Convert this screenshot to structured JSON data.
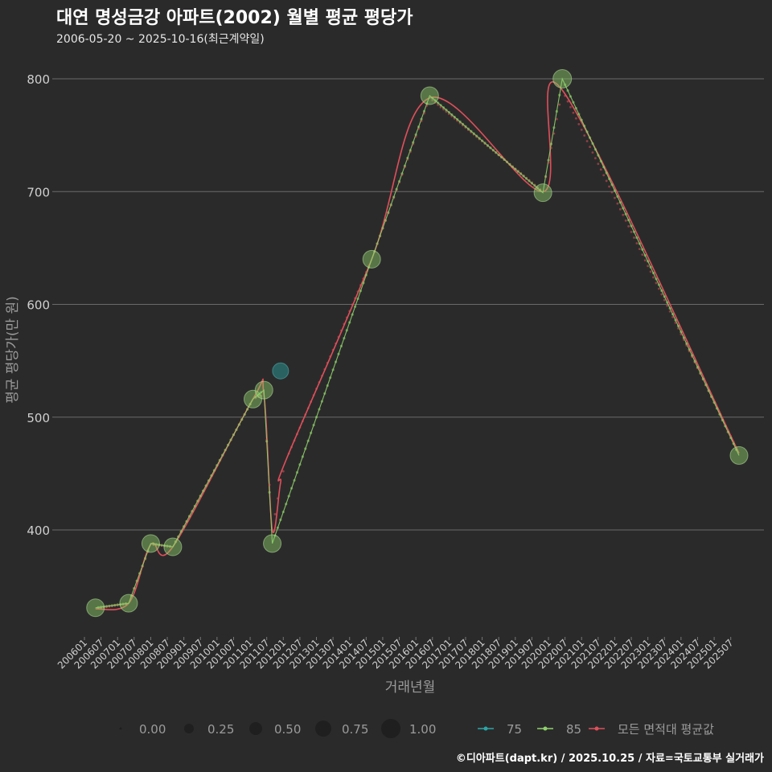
{
  "header": {
    "title": "대연 명성금강 아파트(2002) 월별 평균 평당가",
    "subtitle": "2006-05-20 ~ 2025-10-16(최근계약일)"
  },
  "footer": {
    "credit": "©디아파트(dapt.kr) / 2025.10.25 / 자료=국토교통부 실거래가"
  },
  "chart_data": {
    "type": "line",
    "title": "대연 명성금강 아파트(2002) 월별 평균 평당가",
    "xlabel": "거래년월",
    "ylabel": "평균 평당가(만 원)",
    "ylim": [
      305,
      815
    ],
    "yticks": [
      400,
      500,
      600,
      700,
      800
    ],
    "xlim": [
      0,
      240
    ],
    "x_tick_labels": [
      "200601",
      "200607",
      "200701",
      "200707",
      "200801",
      "200807",
      "200901",
      "200907",
      "201001",
      "201007",
      "201101",
      "201107",
      "201201",
      "201207",
      "201301",
      "201307",
      "201401",
      "201407",
      "201501",
      "201507",
      "201601",
      "201607",
      "201701",
      "201707",
      "201801",
      "201807",
      "201901",
      "201907",
      "202001",
      "202007",
      "202101",
      "202107",
      "202201",
      "202207",
      "202301",
      "202307",
      "202401",
      "202407",
      "202501",
      "202507"
    ],
    "x_tick_index": [
      0,
      6,
      12,
      18,
      24,
      30,
      36,
      42,
      48,
      54,
      60,
      66,
      72,
      78,
      84,
      90,
      96,
      102,
      108,
      114,
      120,
      126,
      132,
      138,
      144,
      150,
      156,
      162,
      168,
      174,
      180,
      186,
      192,
      198,
      204,
      210,
      216,
      222,
      228,
      234
    ],
    "x_unit": "months since 200601",
    "series": [
      {
        "name": "75",
        "color": "#2aa6a6",
        "points": [
          {
            "x": 71,
            "month": "201112",
            "y": 541,
            "size": 0.6
          }
        ]
      },
      {
        "name": "85",
        "color": "#8fd16a",
        "points": [
          {
            "x": 4,
            "month": "200605",
            "y": 331,
            "size": 0.8
          },
          {
            "x": 16,
            "month": "200705",
            "y": 335,
            "size": 0.8
          },
          {
            "x": 24,
            "month": "200801",
            "y": 388,
            "size": 0.8
          },
          {
            "x": 32,
            "month": "200809",
            "y": 385,
            "size": 0.8
          },
          {
            "x": 61,
            "month": "201102",
            "y": 516,
            "size": 0.8
          },
          {
            "x": 65,
            "month": "201106",
            "y": 524,
            "size": 0.8
          },
          {
            "x": 68,
            "month": "201109",
            "y": 388,
            "size": 0.8
          },
          {
            "x": 104,
            "month": "201409",
            "y": 640,
            "size": 0.8
          },
          {
            "x": 125,
            "month": "201606",
            "y": 785,
            "size": 0.8
          },
          {
            "x": 166,
            "month": "201911",
            "y": 699,
            "size": 0.8
          },
          {
            "x": 173,
            "month": "202006",
            "y": 800,
            "size": 0.9
          },
          {
            "x": 237,
            "month": "202510",
            "y": 466,
            "size": 0.8
          }
        ]
      },
      {
        "name": "모든 면적대 평균값",
        "color": "#e0505a",
        "points": [
          {
            "x": 4,
            "y": 330
          },
          {
            "x": 16,
            "y": 335
          },
          {
            "x": 24,
            "y": 387
          },
          {
            "x": 32,
            "y": 385
          },
          {
            "x": 61,
            "y": 516
          },
          {
            "x": 65,
            "y": 520
          },
          {
            "x": 68,
            "y": 400
          },
          {
            "x": 71,
            "y": 442
          },
          {
            "x": 73,
            "y": 462
          },
          {
            "x": 104,
            "y": 640
          },
          {
            "x": 125,
            "y": 783
          },
          {
            "x": 166,
            "y": 700
          },
          {
            "x": 173,
            "y": 790
          },
          {
            "x": 237,
            "y": 468
          }
        ]
      }
    ],
    "legend": {
      "position": "bottom",
      "size_title": "",
      "size_labels": [
        "0.00",
        "0.25",
        "0.50",
        "0.75",
        "1.00"
      ],
      "series_labels": [
        "75",
        "85",
        "모든 면적대 평균값"
      ]
    }
  }
}
